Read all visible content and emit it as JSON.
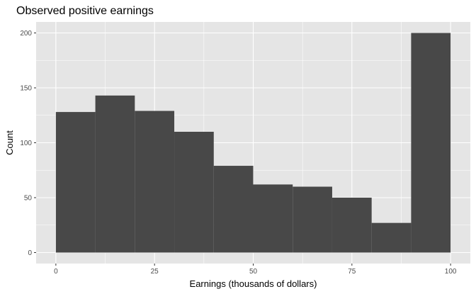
{
  "chart_data": {
    "type": "bar",
    "title": "Observed positive earnings",
    "xlabel": "Earnings (thousands of dollars)",
    "ylabel": "Count",
    "bins": [
      {
        "x0": 0,
        "x1": 10,
        "count": 128
      },
      {
        "x0": 10,
        "x1": 20,
        "count": 143
      },
      {
        "x0": 20,
        "x1": 30,
        "count": 129
      },
      {
        "x0": 30,
        "x1": 40,
        "count": 110
      },
      {
        "x0": 40,
        "x1": 50,
        "count": 79
      },
      {
        "x0": 50,
        "x1": 60,
        "count": 62
      },
      {
        "x0": 60,
        "x1": 70,
        "count": 60
      },
      {
        "x0": 70,
        "x1": 80,
        "count": 50
      },
      {
        "x0": 80,
        "x1": 90,
        "count": 27
      },
      {
        "x0": 90,
        "x1": 100,
        "count": 200
      }
    ],
    "xlim": [
      -5,
      105
    ],
    "ylim": [
      -10,
      210
    ],
    "x_ticks": [
      0,
      25,
      50,
      75,
      100
    ],
    "y_ticks": [
      0,
      50,
      100,
      150,
      200
    ],
    "x_tick_labels": [
      "0",
      "25",
      "50",
      "75",
      "100"
    ],
    "y_tick_labels": [
      "0",
      "50",
      "100",
      "150",
      "200"
    ],
    "grid": true,
    "colors": {
      "panel_background": "#e5e5e5",
      "grid_major": "#ffffff",
      "bar_fill": "#484848",
      "tick_text": "#4d4d4d",
      "tick_mark": "#333333"
    }
  }
}
